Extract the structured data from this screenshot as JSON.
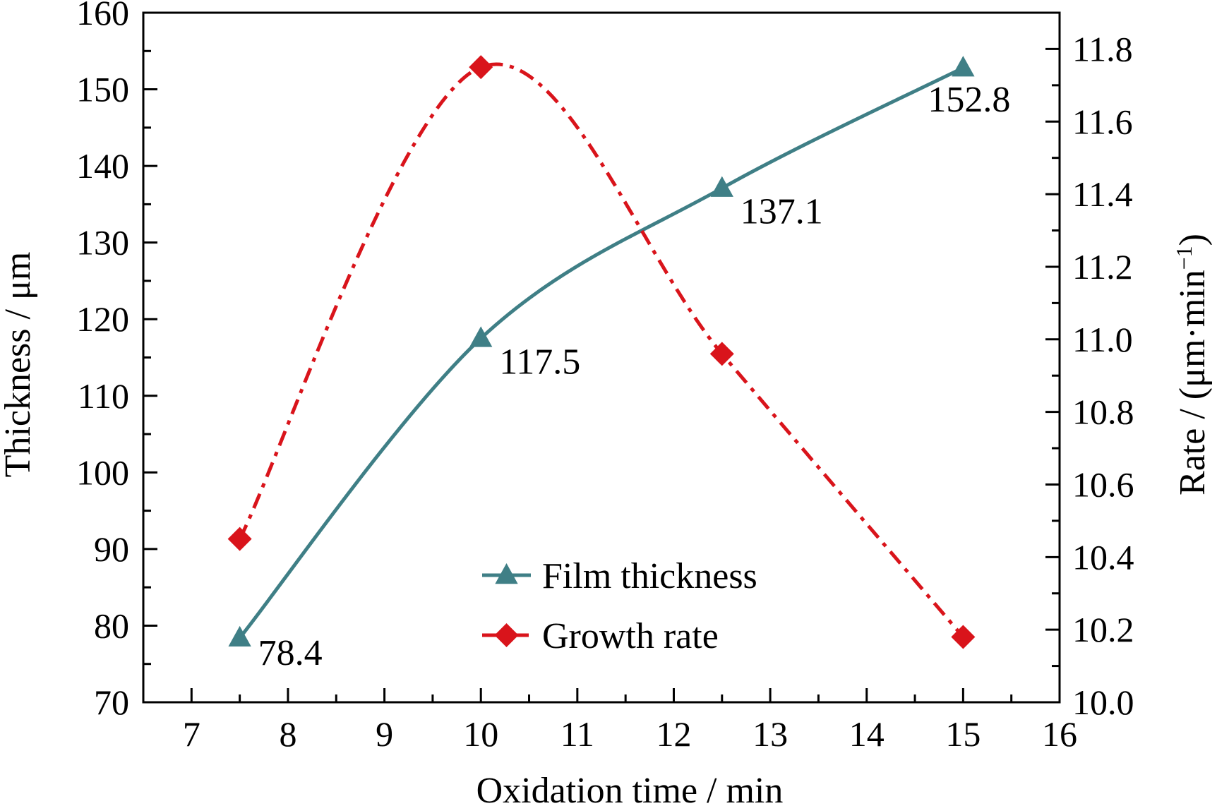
{
  "chart_data": {
    "type": "line",
    "x_axis": {
      "label": "Oxidation time / min",
      "range": [
        6.5,
        16
      ],
      "ticks": [
        "7",
        "8",
        "9",
        "10",
        "11",
        "12",
        "13",
        "14",
        "15",
        "16"
      ]
    },
    "y_axis_left": {
      "label": "Thickness / μm",
      "range": [
        70,
        160
      ],
      "ticks": [
        "70",
        "80",
        "90",
        "100",
        "110",
        "120",
        "130",
        "140",
        "150",
        "160"
      ]
    },
    "y_axis_right": {
      "label_main": "Rate / (μm·min",
      "label_sup": "−1",
      "label_end": ")",
      "range": [
        10.0,
        11.9
      ],
      "ticks": [
        "10.0",
        "10.2",
        "10.4",
        "10.6",
        "10.8",
        "11.0",
        "11.2",
        "11.4",
        "11.6",
        "11.8"
      ]
    },
    "series": [
      {
        "name": "Film thickness",
        "axis": "left",
        "color": "#3f7f86",
        "line_style": "solid",
        "marker": "triangle",
        "x": [
          7.5,
          10,
          12.5,
          15
        ],
        "y": [
          78.4,
          117.5,
          137.1,
          152.8
        ],
        "data_labels": [
          "78.4",
          "117.5",
          "137.1",
          "152.8"
        ]
      },
      {
        "name": "Growth rate",
        "axis": "right",
        "color": "#d9141b",
        "line_style": "dash-dot",
        "marker": "diamond",
        "x": [
          7.5,
          10,
          12.5,
          15
        ],
        "y": [
          10.45,
          11.75,
          10.96,
          10.18
        ]
      }
    ],
    "legend_position": "bottom-center",
    "grid": false
  }
}
